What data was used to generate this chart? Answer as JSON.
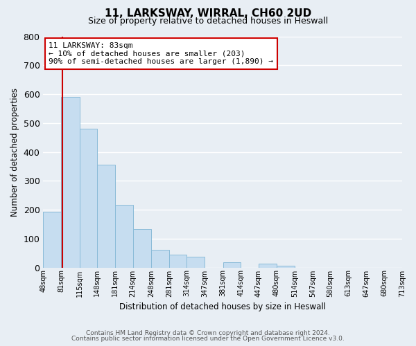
{
  "title": "11, LARKSWAY, WIRRAL, CH60 2UD",
  "subtitle": "Size of property relative to detached houses in Heswall",
  "xlabel": "Distribution of detached houses by size in Heswall",
  "ylabel": "Number of detached properties",
  "bar_color": "#c6ddf0",
  "bar_edge_color": "#8abbd8",
  "bins": [
    48,
    81,
    115,
    148,
    181,
    214,
    248,
    281,
    314,
    347,
    381,
    414,
    447,
    480,
    514,
    547,
    580,
    613,
    647,
    680,
    713
  ],
  "counts": [
    193,
    590,
    480,
    355,
    217,
    133,
    60,
    45,
    37,
    0,
    17,
    0,
    13,
    5,
    0,
    0,
    0,
    0,
    0,
    0
  ],
  "tick_labels": [
    "48sqm",
    "81sqm",
    "115sqm",
    "148sqm",
    "181sqm",
    "214sqm",
    "248sqm",
    "281sqm",
    "314sqm",
    "347sqm",
    "381sqm",
    "414sqm",
    "447sqm",
    "480sqm",
    "514sqm",
    "547sqm",
    "580sqm",
    "613sqm",
    "647sqm",
    "680sqm",
    "713sqm"
  ],
  "property_line_x": 83,
  "property_line_color": "#cc0000",
  "annotation_line1": "11 LARKSWAY: 83sqm",
  "annotation_line2": "← 10% of detached houses are smaller (203)",
  "annotation_line3": "90% of semi-detached houses are larger (1,890) →",
  "ylim": [
    0,
    800
  ],
  "yticks": [
    0,
    100,
    200,
    300,
    400,
    500,
    600,
    700,
    800
  ],
  "footer1": "Contains HM Land Registry data © Crown copyright and database right 2024.",
  "footer2": "Contains public sector information licensed under the Open Government Licence v3.0.",
  "bg_color": "#e8eef4",
  "plot_bg_color": "#e8eef4",
  "grid_color": "#ffffff",
  "annotation_box_color": "#ffffff",
  "annotation_box_edge": "#cc0000"
}
